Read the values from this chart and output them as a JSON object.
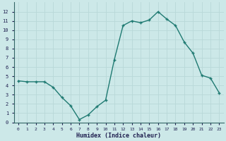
{
  "x": [
    0,
    1,
    2,
    3,
    4,
    5,
    6,
    7,
    8,
    9,
    10,
    11,
    12,
    13,
    14,
    15,
    16,
    17,
    18,
    19,
    20,
    21,
    22,
    23
  ],
  "y": [
    4.5,
    4.4,
    4.4,
    4.4,
    3.8,
    2.7,
    1.8,
    0.3,
    0.8,
    1.7,
    2.4,
    6.8,
    10.5,
    11.0,
    10.8,
    11.1,
    12.0,
    11.2,
    10.5,
    8.7,
    7.5,
    5.1,
    4.8,
    3.2
  ],
  "xlabel": "Humidex (Indice chaleur)",
  "ylim": [
    0,
    13
  ],
  "xlim": [
    -0.5,
    23.5
  ],
  "yticks": [
    0,
    1,
    2,
    3,
    4,
    5,
    6,
    7,
    8,
    9,
    10,
    11,
    12
  ],
  "xticks": [
    0,
    1,
    2,
    3,
    4,
    5,
    6,
    7,
    8,
    9,
    10,
    11,
    12,
    13,
    14,
    15,
    16,
    17,
    18,
    19,
    20,
    21,
    22,
    23
  ],
  "line_color": "#1f7a72",
  "marker_color": "#1f7a72",
  "bg_color": "#cce8e8",
  "grid_color": "#b8d8d8",
  "font_color": "#1f1f4f",
  "axis_color": "#336666"
}
